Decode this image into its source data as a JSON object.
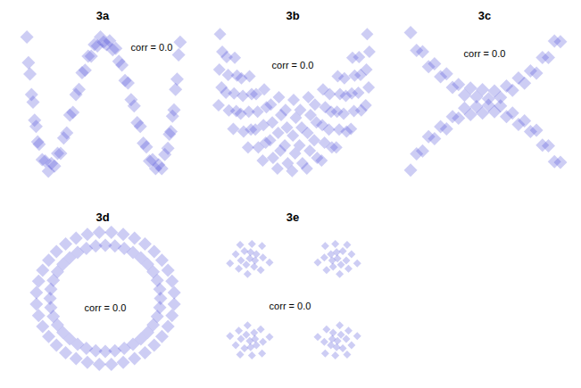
{
  "chart_data": [
    {
      "type": "scatter",
      "title": "3a",
      "annotation": "corr = 0.0",
      "color": "#4b4bd6",
      "marker": "diamond",
      "tick_labels": false,
      "xlim": [
        -1.06,
        1.06
      ],
      "ylim": [
        -0.1,
        1.1
      ],
      "x": [
        -1,
        -0.98,
        -0.96,
        -0.94,
        -0.92,
        -0.9,
        -0.88,
        -0.86,
        -0.84,
        -0.8,
        -0.76,
        -0.72,
        -0.68,
        -0.64,
        -0.6,
        -0.56,
        -0.52,
        -0.48,
        -0.44,
        -0.4,
        -0.36,
        -0.32,
        -0.28,
        -0.24,
        -0.2,
        -0.16,
        -0.12,
        -0.08,
        -0.04,
        0,
        0.04,
        0.08,
        0.12,
        0.16,
        0.2,
        0.24,
        0.28,
        0.32,
        0.36,
        0.4,
        0.44,
        0.48,
        0.52,
        0.56,
        0.6,
        0.64,
        0.68,
        0.72,
        0.76,
        0.8,
        0.84,
        0.86,
        0.88,
        0.9,
        0.92,
        0.94,
        0.96,
        0.98,
        1
      ],
      "values": [
        1.02,
        0.82,
        0.73,
        0.57,
        0.51,
        0.37,
        0.32,
        0.2,
        0.18,
        0.06,
        0.05,
        -0.03,
        0.03,
        0.01,
        0.11,
        0.11,
        0.23,
        0.27,
        0.41,
        0.43,
        0.57,
        0.61,
        0.74,
        0.76,
        0.87,
        0.87,
        0.96,
        0.95,
        1.02,
        0.98,
        0.96,
        0.99,
        0.92,
        0.93,
        0.83,
        0.8,
        0.68,
        0.66,
        0.53,
        0.48,
        0.35,
        0.32,
        0.19,
        0.16,
        0.05,
        0.06,
        -0.01,
        0.02,
        -0.01,
        0.1,
        0.15,
        0.26,
        0.28,
        0.4,
        0.45,
        0.61,
        0.69,
        0.88,
        0.98
      ]
    },
    {
      "type": "scatter",
      "title": "3b",
      "annotation": "corr = 0.0",
      "color": "#4b4bd6",
      "marker": "diamond",
      "tick_labels": false,
      "xlim": [
        -1.08,
        1.08
      ],
      "ylim": [
        -0.05,
        2.25
      ],
      "x": [
        -1.02,
        -0.98,
        -1.01,
        -0.97,
        -1,
        -0.88,
        -0.92,
        -0.89,
        -0.91,
        -0.82,
        -0.78,
        -0.81,
        -0.77,
        -0.8,
        -0.68,
        -0.72,
        -0.69,
        -0.71,
        -0.62,
        -0.58,
        -0.61,
        -0.57,
        -0.6,
        -0.48,
        -0.52,
        -0.49,
        -0.51,
        -0.42,
        -0.38,
        -0.41,
        -0.37,
        -0.4,
        -0.28,
        -0.32,
        -0.29,
        -0.31,
        -0.22,
        -0.18,
        -0.21,
        -0.17,
        -0.2,
        -0.08,
        -0.12,
        -0.09,
        -0.11,
        -0.02,
        0.02,
        -0.01,
        0.03,
        0,
        0.12,
        0.08,
        0.11,
        0.09,
        0.18,
        0.22,
        0.19,
        0.23,
        0.2,
        0.32,
        0.28,
        0.31,
        0.29,
        0.38,
        0.42,
        0.39,
        0.43,
        0.4,
        0.52,
        0.48,
        0.51,
        0.49,
        0.58,
        0.62,
        0.59,
        0.63,
        0.6,
        0.72,
        0.68,
        0.71,
        0.69,
        0.78,
        0.82,
        0.79,
        0.83,
        0.8,
        0.92,
        0.88,
        0.91,
        0.89,
        0.98,
        1.02,
        0.99,
        1.03,
        1
      ],
      "values": [
        1.06,
        1.33,
        1.6,
        1.87,
        2.14,
        0.98,
        1.25,
        1.52,
        1.79,
        0.7,
        0.97,
        1.24,
        1.51,
        1.78,
        0.66,
        0.93,
        1.2,
        1.47,
        0.42,
        0.69,
        0.96,
        1.23,
        1.5,
        0.42,
        0.69,
        0.96,
        1.23,
        0.22,
        0.49,
        0.76,
        1.03,
        1.3,
        0.26,
        0.53,
        0.8,
        1.07,
        0.1,
        0.37,
        0.64,
        0.91,
        1.18,
        0.18,
        0.45,
        0.72,
        0.99,
        0.06,
        0.33,
        0.6,
        0.87,
        1.14,
        0.18,
        0.45,
        0.72,
        0.99,
        0.1,
        0.37,
        0.64,
        0.91,
        1.18,
        0.26,
        0.53,
        0.8,
        1.07,
        0.22,
        0.49,
        0.76,
        1.03,
        1.3,
        0.42,
        0.69,
        0.96,
        1.23,
        0.42,
        0.69,
        0.96,
        1.23,
        1.5,
        0.66,
        0.93,
        1.2,
        1.47,
        0.7,
        0.97,
        1.24,
        1.51,
        1.78,
        0.98,
        1.25,
        1.52,
        1.79,
        1.06,
        1.33,
        1.6,
        1.87,
        2.14
      ]
    },
    {
      "type": "scatter",
      "title": "3c",
      "annotation": "corr = 0.0",
      "color": "#4b4bd6",
      "marker": "diamond",
      "tick_labels": false,
      "xlim": [
        -1.06,
        1.06
      ],
      "ylim": [
        -1.05,
        1.05
      ],
      "x": [
        -1,
        -0.92,
        -0.84,
        -0.76,
        -0.68,
        -0.6,
        -0.52,
        -0.44,
        -0.36,
        -0.28,
        -0.2,
        -0.12,
        -0.04,
        0.04,
        0.12,
        0.2,
        0.28,
        0.36,
        0.44,
        0.52,
        0.6,
        0.68,
        0.76,
        0.84,
        0.92,
        1,
        -1,
        -0.92,
        -0.84,
        -0.76,
        -0.68,
        -0.6,
        -0.52,
        -0.44,
        -0.36,
        -0.28,
        -0.2,
        -0.12,
        -0.04,
        0.04,
        0.12,
        0.2,
        0.28,
        0.36,
        0.44,
        0.52,
        0.6,
        0.68,
        0.76,
        0.84,
        0.92,
        1
      ],
      "values": [
        0.97,
        0.72,
        0.7,
        0.49,
        0.53,
        0.35,
        0.39,
        0.2,
        0.24,
        0.09,
        0.19,
        0.07,
        0.17,
        0.04,
        0.15,
        0.06,
        0.22,
        0.16,
        0.33,
        0.26,
        0.43,
        0.4,
        0.62,
        0.62,
        0.85,
        0.84,
        -0.96,
        -0.73,
        -0.69,
        -0.49,
        -0.52,
        -0.35,
        -0.38,
        -0.21,
        -0.23,
        -0.09,
        -0.18,
        -0.07,
        -0.16,
        -0.05,
        -0.14,
        -0.06,
        -0.21,
        -0.16,
        -0.32,
        -0.27,
        -0.42,
        -0.4,
        -0.61,
        -0.62,
        -0.84,
        -0.85
      ]
    },
    {
      "type": "scatter",
      "title": "3d",
      "annotation": "corr = 0.0",
      "color": "#4b4bd6",
      "marker": "diamond",
      "tick_labels": false,
      "xlim": [
        -1.25,
        1.25
      ],
      "ylim": [
        -1.22,
        1.22
      ],
      "x": [
        0.88,
        0.867,
        0.827,
        0.762,
        0.674,
        0.566,
        0.44,
        0.301,
        0.153,
        0,
        -0.153,
        -0.301,
        -0.44,
        -0.566,
        -0.674,
        -0.762,
        -0.827,
        -0.867,
        -0.88,
        -0.867,
        -0.827,
        -0.762,
        -0.674,
        -0.566,
        -0.44,
        -0.301,
        -0.153,
        0,
        0.153,
        0.301,
        0.44,
        0.566,
        0.674,
        0.762,
        0.827,
        0.867,
        1.096,
        1.062,
        0.997,
        0.901,
        0.778,
        0.631,
        0.465,
        0.285,
        0.096,
        -0.096,
        -0.285,
        -0.465,
        -0.631,
        -0.778,
        -0.901,
        -0.997,
        -1.062,
        -1.096,
        -1.096,
        -1.062,
        -0.997,
        -0.901,
        -0.778,
        -0.631,
        -0.465,
        -0.285,
        -0.096,
        0.096,
        0.285,
        0.465,
        0.631,
        0.778,
        0.901,
        0.997,
        1.062,
        1.096
      ],
      "values": [
        0,
        0.153,
        0.301,
        0.44,
        0.566,
        0.674,
        0.762,
        0.827,
        0.867,
        0.88,
        0.867,
        0.827,
        0.762,
        0.674,
        0.566,
        0.44,
        0.301,
        0.153,
        0,
        -0.153,
        -0.301,
        -0.44,
        -0.566,
        -0.674,
        -0.762,
        -0.827,
        -0.867,
        -0.88,
        -0.867,
        -0.827,
        -0.762,
        -0.674,
        -0.566,
        -0.44,
        -0.301,
        -0.153,
        0.096,
        0.285,
        0.465,
        0.631,
        0.778,
        0.901,
        0.997,
        1.062,
        1.096,
        1.096,
        1.062,
        0.997,
        0.901,
        0.778,
        0.631,
        0.465,
        0.285,
        0.096,
        -0.096,
        -0.285,
        -0.465,
        -0.631,
        -0.778,
        -0.901,
        -0.997,
        -1.062,
        -1.096,
        -1.096,
        -1.062,
        -0.997,
        -0.901,
        -0.778,
        -0.631,
        -0.465,
        -0.285,
        -0.096
      ]
    },
    {
      "type": "scatter",
      "title": "3e",
      "annotation": "corr = 0.0",
      "color": "#4b4bd6",
      "marker": "diamond",
      "tick_labels": false,
      "xlim": [
        -1.75,
        1.75
      ],
      "ylim": [
        -1.75,
        1.75
      ],
      "x": [
        -1,
        -0.85,
        -1.12,
        -1.2,
        -0.9,
        -0.7,
        -1.32,
        -0.95,
        -1.05,
        -0.75,
        -1.25,
        -0.72,
        -1.22,
        -0.55,
        -1.45,
        -0.98,
        -1.08,
        -0.88,
        1,
        0.85,
        1.12,
        1.2,
        0.9,
        0.7,
        1.32,
        0.95,
        1.05,
        0.75,
        1.25,
        0.72,
        1.22,
        0.55,
        1.45,
        0.98,
        1.08,
        0.88,
        -1,
        -0.85,
        -1.12,
        -1.2,
        -0.9,
        -0.7,
        -1.32,
        -0.95,
        -1.05,
        -0.75,
        -1.25,
        -0.72,
        -1.22,
        -0.55,
        -1.45,
        -0.98,
        -1.08,
        -0.88,
        1,
        0.85,
        1.12,
        1.2,
        0.9,
        0.7,
        1.32,
        0.95,
        1.05,
        0.75,
        1.25,
        0.72,
        1.22,
        0.55,
        1.45,
        0.98,
        1.08,
        0.88
      ],
      "values": [
        1,
        1.1,
        1.18,
        0.95,
        0.8,
        1.02,
        1.1,
        1.35,
        0.62,
        0.72,
        0.75,
        1.3,
        1.33,
        0.9,
        0.88,
        1.15,
        0.85,
        0.95,
        1,
        1.1,
        1.18,
        0.95,
        0.8,
        1.02,
        1.1,
        1.35,
        0.62,
        0.72,
        0.75,
        1.3,
        1.33,
        0.9,
        0.88,
        1.15,
        0.85,
        0.95,
        -1,
        -1.1,
        -1.18,
        -0.95,
        -0.8,
        -1.02,
        -1.1,
        -1.35,
        -0.62,
        -0.72,
        -0.75,
        -1.3,
        -1.33,
        -0.9,
        -0.88,
        -1.15,
        -0.85,
        -0.95,
        -1,
        -1.1,
        -1.18,
        -0.95,
        -0.8,
        -1.02,
        -1.1,
        -1.35,
        -0.62,
        -0.72,
        -0.75,
        -1.3,
        -1.33,
        -0.9,
        -0.88,
        -1.15,
        -0.85,
        -0.95
      ]
    }
  ]
}
